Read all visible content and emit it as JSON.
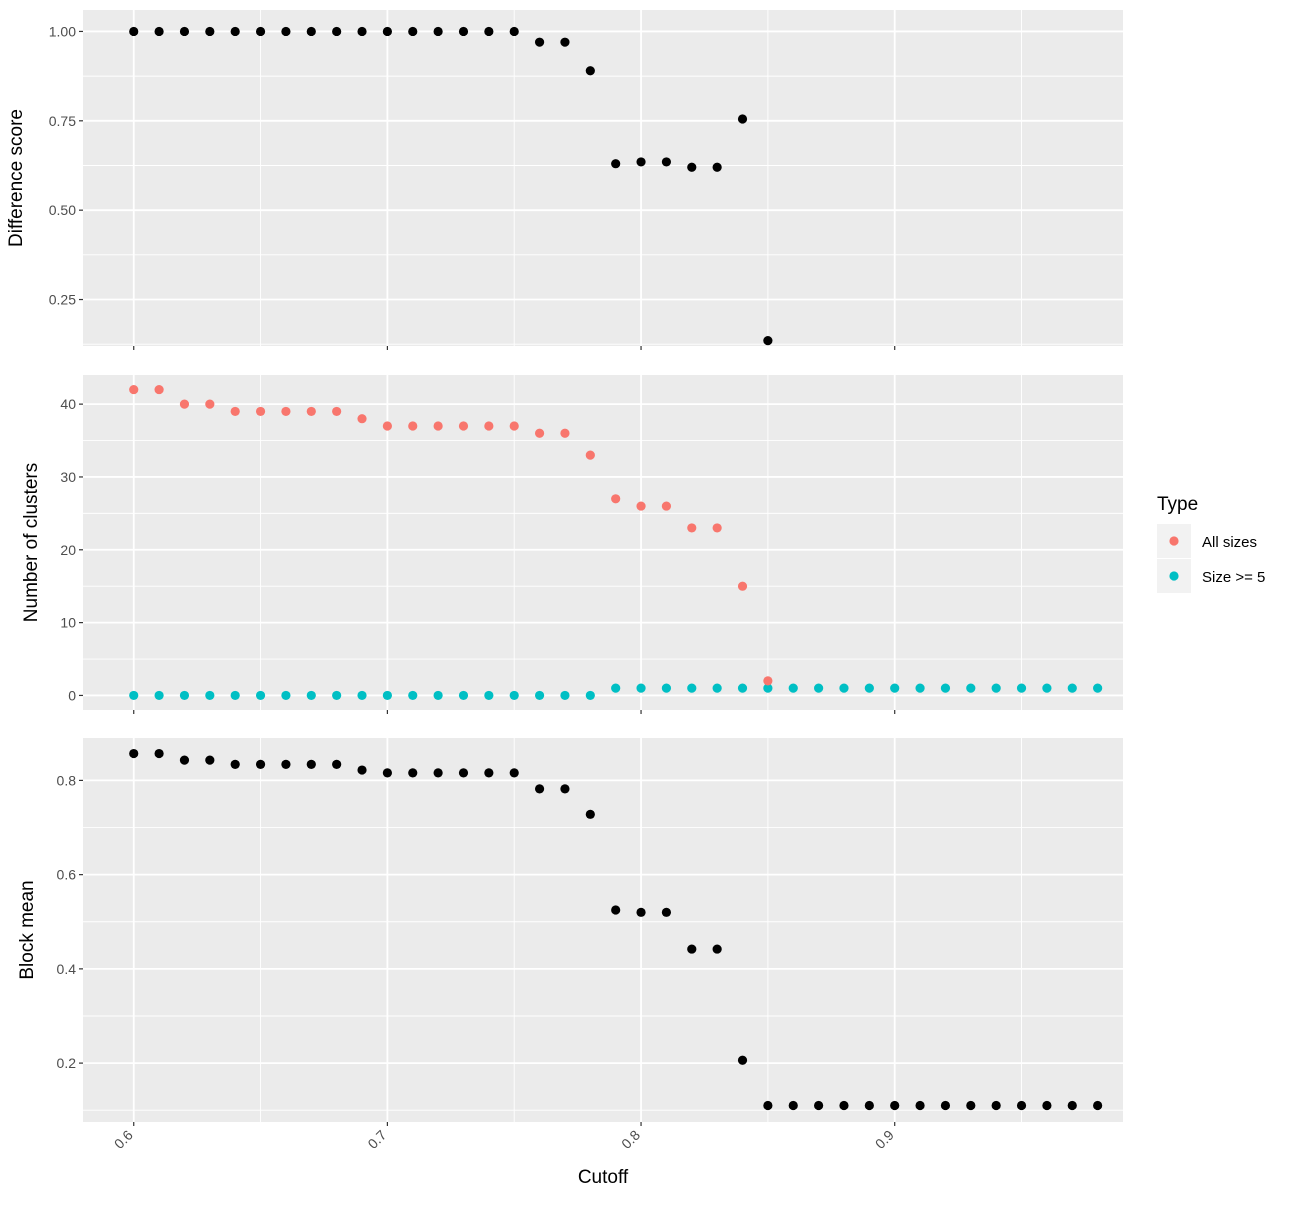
{
  "chart_data": [
    {
      "type": "scatter",
      "panel": "top",
      "ylabel": "Difference score",
      "xlim": [
        0.58,
        0.99
      ],
      "ylim": [
        0.12,
        1.06
      ],
      "yticks": [
        0.25,
        0.5,
        0.75,
        1.0
      ],
      "ytick_labels": [
        "0.25",
        "0.50",
        "0.75",
        "1.00"
      ],
      "xticks": [
        0.6,
        0.7,
        0.8,
        0.9
      ],
      "point_color": "#000000",
      "points": [
        [
          0.6,
          1.0
        ],
        [
          0.61,
          1.0
        ],
        [
          0.62,
          1.0
        ],
        [
          0.63,
          1.0
        ],
        [
          0.64,
          1.0
        ],
        [
          0.65,
          1.0
        ],
        [
          0.66,
          1.0
        ],
        [
          0.67,
          1.0
        ],
        [
          0.68,
          1.0
        ],
        [
          0.69,
          1.0
        ],
        [
          0.7,
          1.0
        ],
        [
          0.71,
          1.0
        ],
        [
          0.72,
          1.0
        ],
        [
          0.73,
          1.0
        ],
        [
          0.74,
          1.0
        ],
        [
          0.75,
          1.0
        ],
        [
          0.76,
          0.97
        ],
        [
          0.77,
          0.97
        ],
        [
          0.78,
          0.89
        ],
        [
          0.79,
          0.63
        ],
        [
          0.8,
          0.635
        ],
        [
          0.81,
          0.635
        ],
        [
          0.82,
          0.62
        ],
        [
          0.83,
          0.62
        ],
        [
          0.84,
          0.755
        ],
        [
          0.85,
          0.135
        ]
      ]
    },
    {
      "type": "scatter",
      "panel": "middle",
      "ylabel": "Number of clusters",
      "xlim": [
        0.58,
        0.99
      ],
      "ylim": [
        -2,
        44
      ],
      "yticks": [
        0,
        10,
        20,
        30,
        40
      ],
      "ytick_labels": [
        "0",
        "10",
        "20",
        "30",
        "40"
      ],
      "xticks": [
        0.6,
        0.7,
        0.8,
        0.9
      ],
      "series": [
        {
          "name": "Size >= 5",
          "color": "#00BFC4",
          "points": [
            [
              0.6,
              0
            ],
            [
              0.61,
              0
            ],
            [
              0.62,
              0
            ],
            [
              0.63,
              0
            ],
            [
              0.64,
              0
            ],
            [
              0.65,
              0
            ],
            [
              0.66,
              0
            ],
            [
              0.67,
              0
            ],
            [
              0.68,
              0
            ],
            [
              0.69,
              0
            ],
            [
              0.7,
              0
            ],
            [
              0.71,
              0
            ],
            [
              0.72,
              0
            ],
            [
              0.73,
              0
            ],
            [
              0.74,
              0
            ],
            [
              0.75,
              0
            ],
            [
              0.76,
              0
            ],
            [
              0.77,
              0
            ],
            [
              0.78,
              0
            ],
            [
              0.79,
              1
            ],
            [
              0.8,
              1
            ],
            [
              0.81,
              1
            ],
            [
              0.82,
              1
            ],
            [
              0.83,
              1
            ],
            [
              0.84,
              1
            ],
            [
              0.85,
              1
            ],
            [
              0.86,
              1
            ],
            [
              0.87,
              1
            ],
            [
              0.88,
              1
            ],
            [
              0.89,
              1
            ],
            [
              0.9,
              1
            ],
            [
              0.91,
              1
            ],
            [
              0.92,
              1
            ],
            [
              0.93,
              1
            ],
            [
              0.94,
              1
            ],
            [
              0.95,
              1
            ],
            [
              0.96,
              1
            ],
            [
              0.97,
              1
            ],
            [
              0.98,
              1
            ]
          ]
        },
        {
          "name": "All sizes",
          "color": "#F8766D",
          "points": [
            [
              0.6,
              42
            ],
            [
              0.61,
              42
            ],
            [
              0.62,
              40
            ],
            [
              0.63,
              40
            ],
            [
              0.64,
              39
            ],
            [
              0.65,
              39
            ],
            [
              0.66,
              39
            ],
            [
              0.67,
              39
            ],
            [
              0.68,
              39
            ],
            [
              0.69,
              38
            ],
            [
              0.7,
              37
            ],
            [
              0.71,
              37
            ],
            [
              0.72,
              37
            ],
            [
              0.73,
              37
            ],
            [
              0.74,
              37
            ],
            [
              0.75,
              37
            ],
            [
              0.76,
              36
            ],
            [
              0.77,
              36
            ],
            [
              0.78,
              33
            ],
            [
              0.79,
              27
            ],
            [
              0.8,
              26
            ],
            [
              0.81,
              26
            ],
            [
              0.82,
              23
            ],
            [
              0.83,
              23
            ],
            [
              0.84,
              15
            ],
            [
              0.85,
              2
            ]
          ]
        }
      ]
    },
    {
      "type": "scatter",
      "panel": "bottom",
      "ylabel": "Block mean",
      "xlabel": "Cutoff",
      "xlim": [
        0.58,
        0.99
      ],
      "ylim": [
        0.075,
        0.89
      ],
      "yticks": [
        0.2,
        0.4,
        0.6,
        0.8
      ],
      "ytick_labels": [
        "0.2",
        "0.4",
        "0.6",
        "0.8"
      ],
      "xticks": [
        0.6,
        0.7,
        0.8,
        0.9
      ],
      "xtick_labels": [
        "0.6",
        "0.7",
        "0.8",
        "0.9"
      ],
      "point_color": "#000000",
      "points": [
        [
          0.6,
          0.857
        ],
        [
          0.61,
          0.857
        ],
        [
          0.62,
          0.843
        ],
        [
          0.63,
          0.843
        ],
        [
          0.64,
          0.834
        ],
        [
          0.65,
          0.834
        ],
        [
          0.66,
          0.834
        ],
        [
          0.67,
          0.834
        ],
        [
          0.68,
          0.834
        ],
        [
          0.69,
          0.822
        ],
        [
          0.7,
          0.816
        ],
        [
          0.71,
          0.816
        ],
        [
          0.72,
          0.816
        ],
        [
          0.73,
          0.816
        ],
        [
          0.74,
          0.816
        ],
        [
          0.75,
          0.816
        ],
        [
          0.76,
          0.782
        ],
        [
          0.77,
          0.782
        ],
        [
          0.78,
          0.728
        ],
        [
          0.79,
          0.525
        ],
        [
          0.8,
          0.52
        ],
        [
          0.81,
          0.52
        ],
        [
          0.82,
          0.442
        ],
        [
          0.83,
          0.442
        ],
        [
          0.84,
          0.206
        ],
        [
          0.85,
          0.11
        ],
        [
          0.86,
          0.11
        ],
        [
          0.87,
          0.11
        ],
        [
          0.88,
          0.11
        ],
        [
          0.89,
          0.11
        ],
        [
          0.9,
          0.11
        ],
        [
          0.91,
          0.11
        ],
        [
          0.92,
          0.11
        ],
        [
          0.93,
          0.11
        ],
        [
          0.94,
          0.11
        ],
        [
          0.95,
          0.11
        ],
        [
          0.96,
          0.11
        ],
        [
          0.97,
          0.11
        ],
        [
          0.98,
          0.11
        ]
      ]
    }
  ],
  "legend": {
    "title": "Type",
    "placement": "right",
    "items": [
      {
        "label": "All sizes",
        "color": "#F8766D"
      },
      {
        "label": "Size >= 5",
        "color": "#00BFC4"
      }
    ]
  },
  "colors": {
    "panel_background": "#EBEBEB",
    "grid_line": "#FFFFFF",
    "legend_key_background": "#F2F2F2"
  }
}
